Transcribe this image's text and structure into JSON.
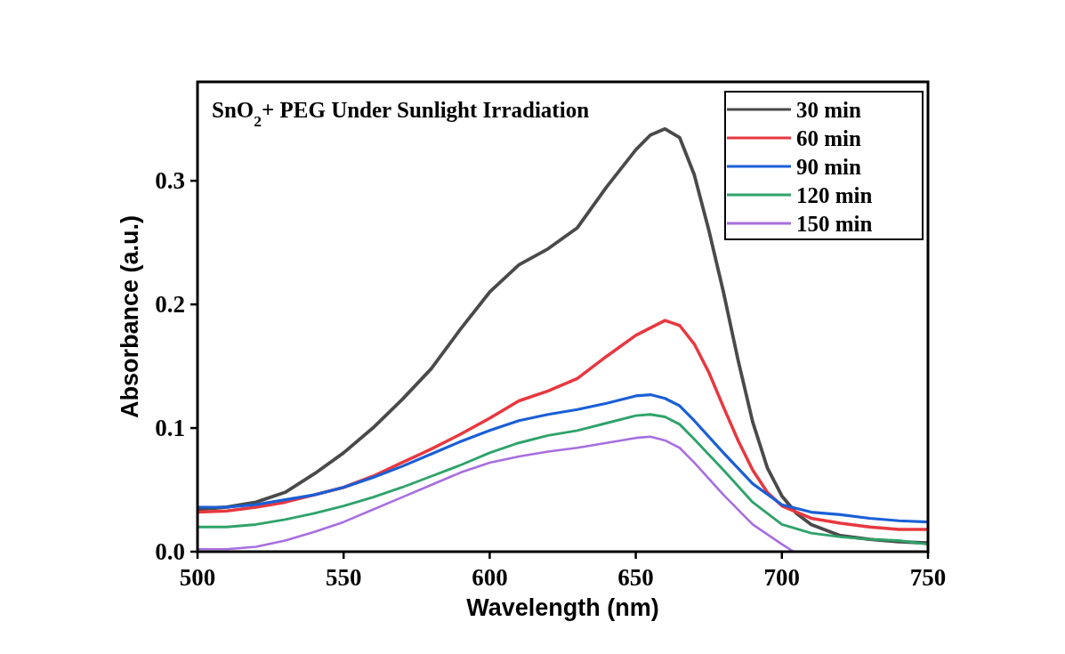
{
  "chart_data": {
    "type": "line",
    "title": "SnO$_{2}$+ PEG Under Sunlight Irradiation",
    "xlabel": "Wavelength (nm)",
    "ylabel": "Absorbance (a.u.)",
    "xlim": [
      500,
      750
    ],
    "xticks": [
      500,
      550,
      600,
      650,
      700,
      750
    ],
    "ylim": [
      0,
      0.38
    ],
    "yticks": [
      {
        "value": 0,
        "label": "0.0"
      },
      0.1,
      0.2,
      0.3
    ],
    "legend": "top right",
    "grid": false,
    "line_style": "solid",
    "marker": "none",
    "series": [
      {
        "name": "30 min",
        "color": "#4a4a4a",
        "x": [
          500,
          510,
          520,
          530,
          540,
          550,
          560,
          570,
          580,
          590,
          600,
          610,
          620,
          630,
          640,
          650,
          655,
          660,
          665,
          670,
          675,
          680,
          685,
          690,
          695,
          700,
          705,
          710,
          720,
          730,
          740,
          750
        ],
        "values": [
          0.034,
          0.036,
          0.04,
          0.048,
          0.063,
          0.08,
          0.1,
          0.123,
          0.148,
          0.18,
          0.21,
          0.232,
          0.245,
          0.262,
          0.295,
          0.325,
          0.337,
          0.342,
          0.335,
          0.305,
          0.26,
          0.21,
          0.155,
          0.105,
          0.068,
          0.045,
          0.031,
          0.022,
          0.013,
          0.01,
          0.008,
          0.007
        ]
      },
      {
        "name": "60 min",
        "color": "#e8383f",
        "x": [
          500,
          510,
          520,
          530,
          540,
          550,
          560,
          570,
          580,
          590,
          600,
          610,
          620,
          630,
          640,
          650,
          660,
          665,
          670,
          675,
          680,
          685,
          690,
          695,
          700,
          710,
          720,
          730,
          740,
          750
        ],
        "values": [
          0.032,
          0.033,
          0.036,
          0.04,
          0.046,
          0.052,
          0.061,
          0.072,
          0.083,
          0.095,
          0.108,
          0.122,
          0.13,
          0.14,
          0.158,
          0.175,
          0.187,
          0.183,
          0.168,
          0.145,
          0.117,
          0.09,
          0.066,
          0.048,
          0.037,
          0.027,
          0.023,
          0.02,
          0.018,
          0.018
        ]
      },
      {
        "name": "90 min",
        "color": "#1a5fd6",
        "x": [
          500,
          510,
          520,
          530,
          540,
          550,
          560,
          570,
          580,
          590,
          600,
          610,
          620,
          630,
          640,
          650,
          655,
          660,
          665,
          670,
          680,
          690,
          700,
          710,
          720,
          730,
          740,
          750
        ],
        "values": [
          0.036,
          0.036,
          0.038,
          0.042,
          0.046,
          0.052,
          0.06,
          0.069,
          0.079,
          0.089,
          0.098,
          0.106,
          0.111,
          0.115,
          0.12,
          0.126,
          0.127,
          0.124,
          0.118,
          0.106,
          0.08,
          0.055,
          0.038,
          0.032,
          0.03,
          0.027,
          0.025,
          0.024
        ]
      },
      {
        "name": "120 min",
        "color": "#2ea36a",
        "x": [
          500,
          510,
          520,
          530,
          540,
          550,
          560,
          570,
          580,
          590,
          600,
          610,
          620,
          630,
          640,
          650,
          655,
          660,
          665,
          670,
          680,
          690,
          700,
          710,
          720,
          730,
          740,
          750
        ],
        "values": [
          0.02,
          0.02,
          0.022,
          0.026,
          0.031,
          0.037,
          0.044,
          0.052,
          0.061,
          0.07,
          0.08,
          0.088,
          0.094,
          0.098,
          0.104,
          0.11,
          0.111,
          0.109,
          0.103,
          0.091,
          0.066,
          0.04,
          0.022,
          0.015,
          0.012,
          0.01,
          0.009,
          0.006
        ]
      },
      {
        "name": "150 min",
        "color": "#a86ee0",
        "x": [
          500,
          510,
          520,
          530,
          540,
          550,
          560,
          570,
          580,
          590,
          600,
          610,
          620,
          630,
          640,
          650,
          655,
          660,
          665,
          670,
          680,
          690,
          700,
          704
        ],
        "values": [
          0.002,
          0.002,
          0.004,
          0.009,
          0.016,
          0.024,
          0.034,
          0.044,
          0.054,
          0.064,
          0.072,
          0.077,
          0.081,
          0.084,
          0.088,
          0.092,
          0.093,
          0.09,
          0.084,
          0.072,
          0.046,
          0.022,
          0.006,
          0
        ]
      }
    ]
  }
}
